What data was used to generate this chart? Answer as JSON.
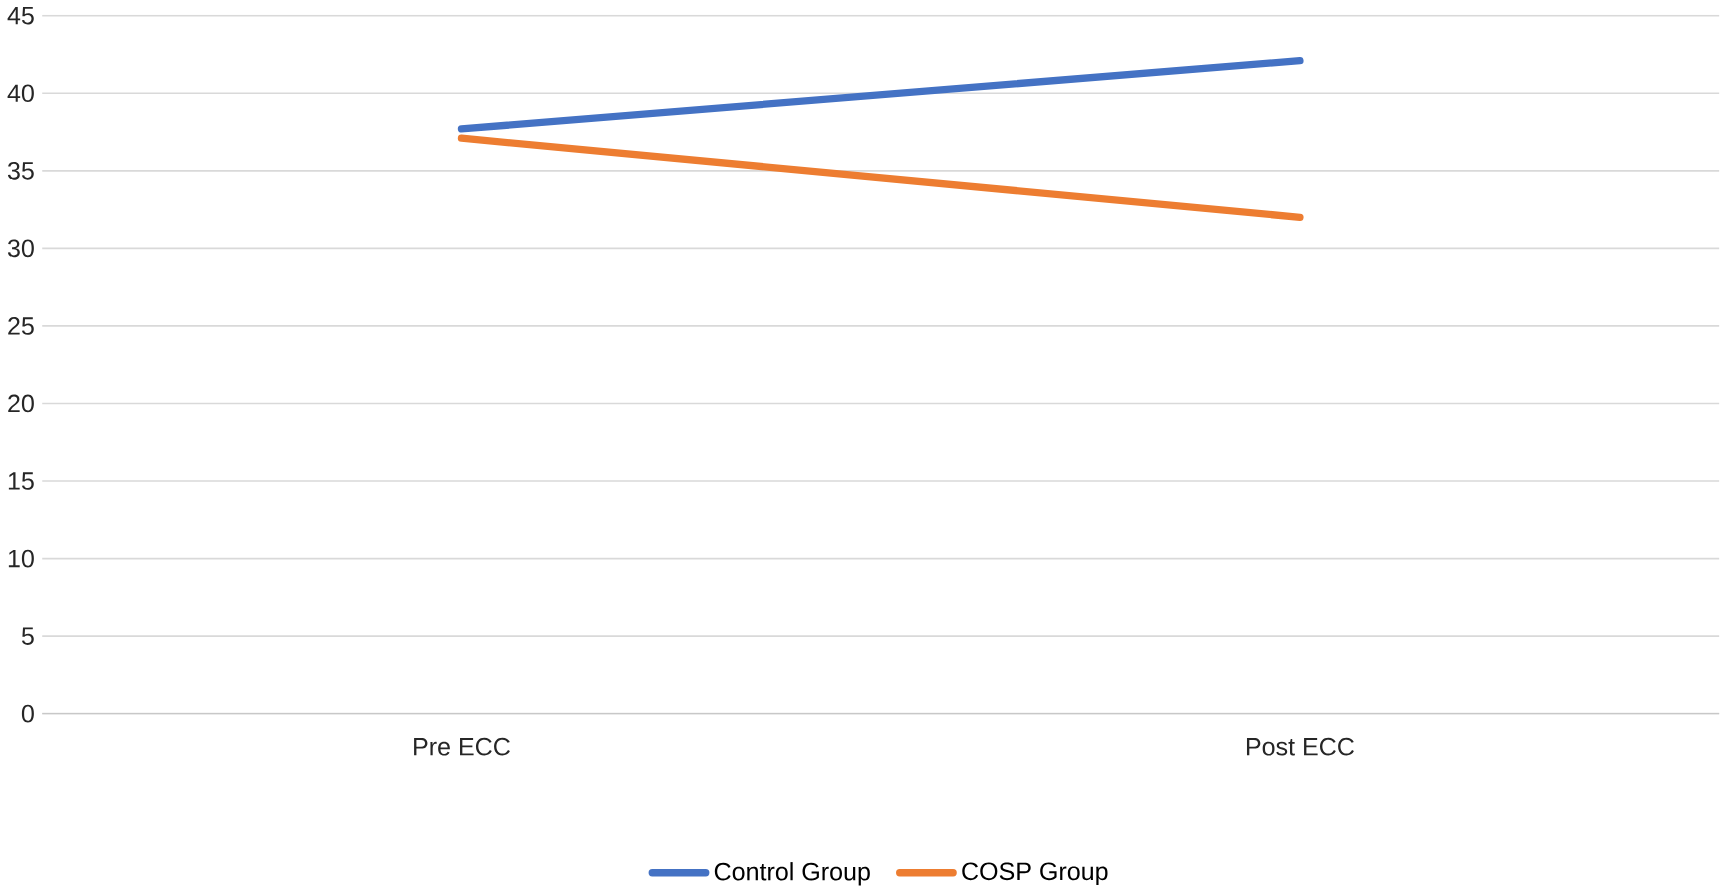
{
  "chart_data": {
    "type": "line",
    "categories": [
      "Pre ECC",
      "Post ECC"
    ],
    "series": [
      {
        "name": "Control Group",
        "color": "#4472c4",
        "values": [
          37.7,
          42.1
        ]
      },
      {
        "name": "COSP Group",
        "color": "#ed7d31",
        "values": [
          37.1,
          32.0
        ]
      }
    ],
    "ylim": [
      0,
      45
    ],
    "yticks": [
      0,
      5,
      10,
      15,
      20,
      25,
      30,
      35,
      40,
      45
    ],
    "grid": "y",
    "legend": "bottom",
    "marker": "none",
    "line_style": "solid"
  }
}
